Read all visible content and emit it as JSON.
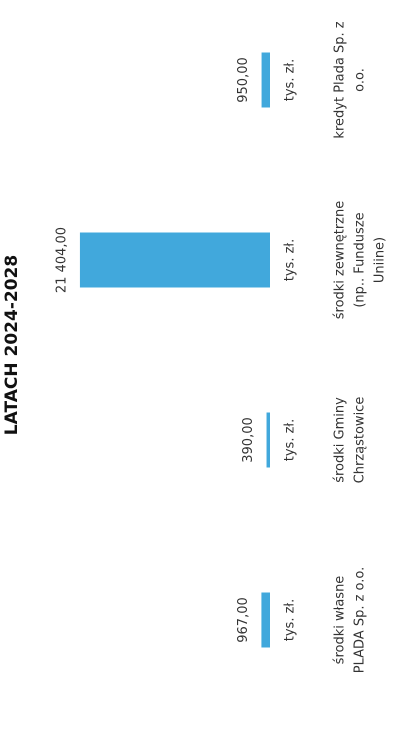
{
  "chart_data": {
    "type": "bar",
    "title": "LATACH 2024-2028",
    "categories": [
      [
        "środki własne",
        "PLADA Sp. z o.o."
      ],
      [
        "środki Gminy",
        "Chrząstowice"
      ],
      [
        "środki zewnętrzne",
        "(np.. Fundusze",
        "Uniine)"
      ],
      [
        "kredyt Plada Sp. z",
        "o.o."
      ]
    ],
    "values": [
      967,
      390,
      21404,
      950
    ],
    "value_labels": [
      "967,00",
      "390,00",
      "21 404,00",
      "950,00"
    ],
    "unit": "tys. zł.",
    "color": "#41a8dc",
    "ylim": [
      0,
      25000
    ]
  }
}
